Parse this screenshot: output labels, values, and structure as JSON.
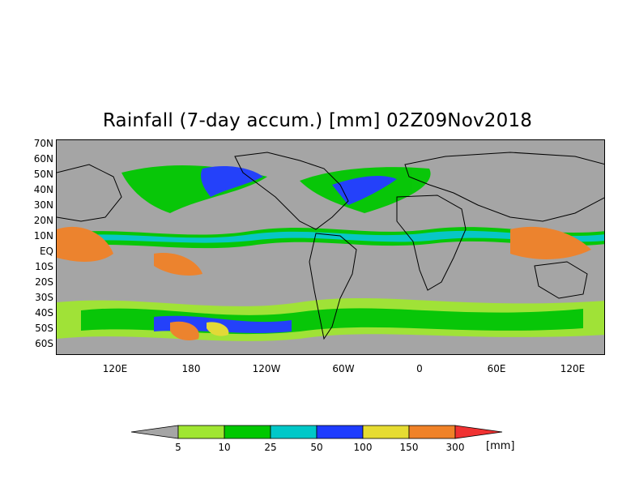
{
  "title": "Rainfall (7-day accum.) [mm] 02Z09Nov2018",
  "lat_labels": [
    "70N",
    "60N",
    "50N",
    "40N",
    "30N",
    "20N",
    "10N",
    "EQ",
    "10S",
    "20S",
    "30S",
    "40S",
    "50S",
    "60S"
  ],
  "lon_labels": [
    "120E",
    "180",
    "120W",
    "60W",
    "0",
    "60E",
    "120E"
  ],
  "colorbar": {
    "thresholds": [
      "5",
      "10",
      "25",
      "50",
      "100",
      "150",
      "300"
    ],
    "colors": [
      "#a5a5a5",
      "#a0e632",
      "#00c800",
      "#00c8c8",
      "#1e3cff",
      "#e6dc32",
      "#f08228",
      "#f03232"
    ],
    "unit": "[mm]"
  }
}
